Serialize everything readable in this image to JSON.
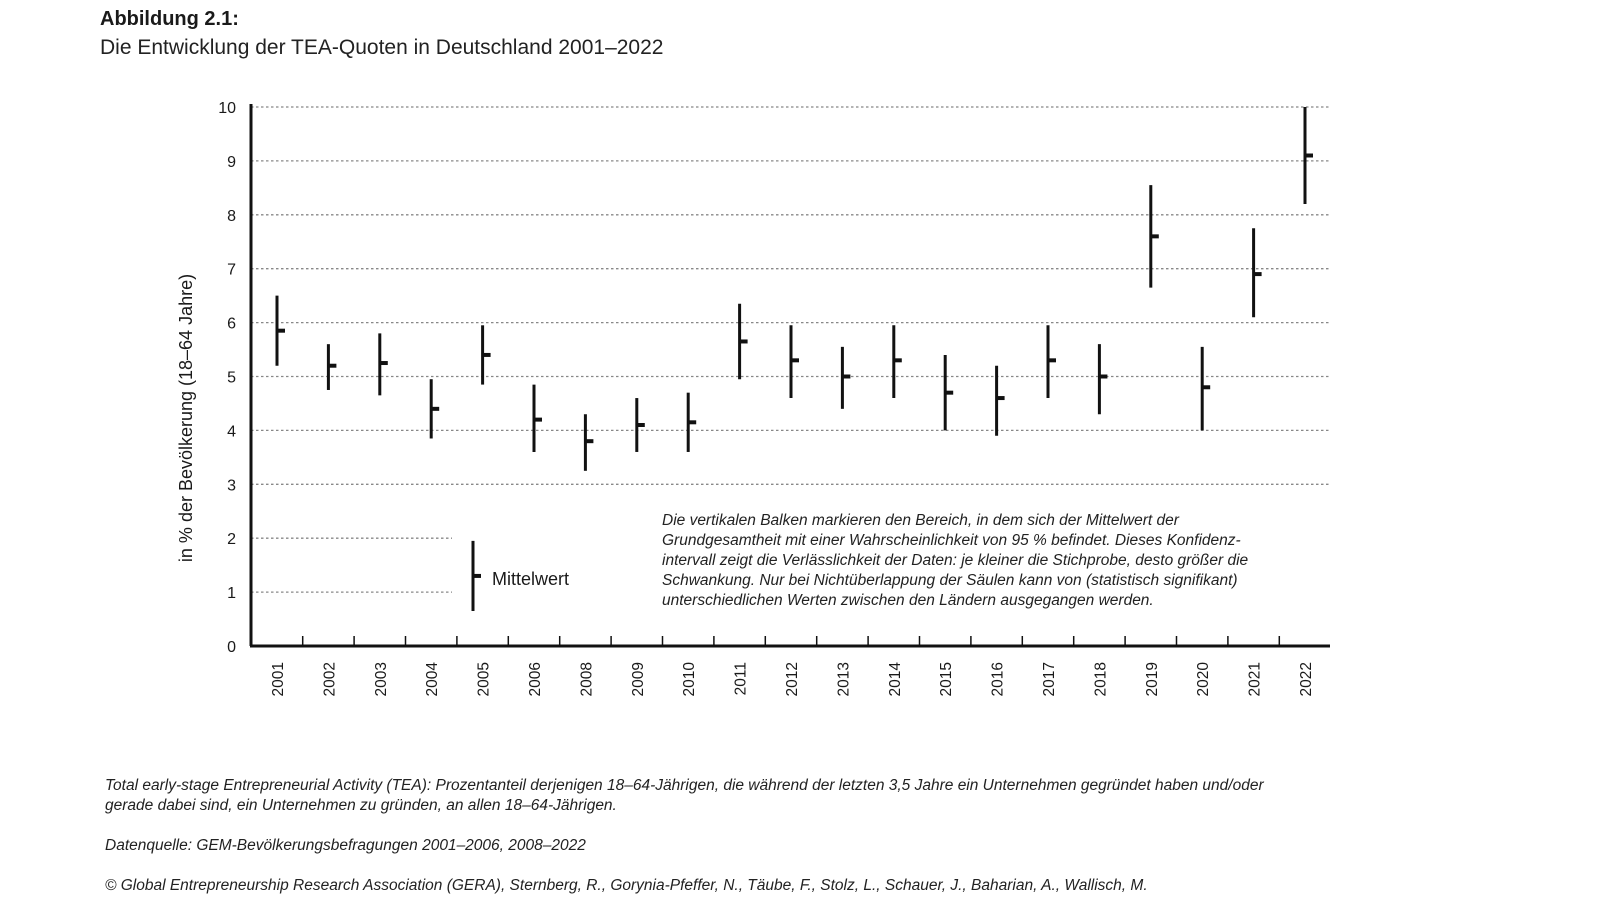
{
  "figure": {
    "label": "Abbildung 2.1:",
    "title": "Die Entwicklung der TEA-Quoten in Deutschland 2001–2022"
  },
  "chart_data": {
    "type": "errorbar",
    "title": "Die Entwicklung der TEA-Quoten in Deutschland 2001–2022",
    "ylabel": "in % der Bevölkerung (18–64 Jahre)",
    "xlabel": "",
    "ylim": [
      0,
      10
    ],
    "yticks": [
      0,
      1,
      2,
      3,
      4,
      5,
      6,
      7,
      8,
      9,
      10
    ],
    "grid": "horizontal-dotted",
    "legend": {
      "label": "Mittelwert",
      "placement": "lower-left"
    },
    "points": [
      {
        "year": "2001",
        "mean": 5.85,
        "low": 5.2,
        "high": 6.5
      },
      {
        "year": "2002",
        "mean": 5.2,
        "low": 4.75,
        "high": 5.6
      },
      {
        "year": "2003",
        "mean": 5.25,
        "low": 4.65,
        "high": 5.8
      },
      {
        "year": "2004",
        "mean": 4.4,
        "low": 3.85,
        "high": 4.95
      },
      {
        "year": "2005",
        "mean": 5.4,
        "low": 4.85,
        "high": 5.95
      },
      {
        "year": "2006",
        "mean": 4.2,
        "low": 3.6,
        "high": 4.85
      },
      {
        "year": "2008",
        "mean": 3.8,
        "low": 3.25,
        "high": 4.3
      },
      {
        "year": "2009",
        "mean": 4.1,
        "low": 3.6,
        "high": 4.6
      },
      {
        "year": "2010",
        "mean": 4.15,
        "low": 3.6,
        "high": 4.7
      },
      {
        "year": "2011",
        "mean": 5.65,
        "low": 4.95,
        "high": 6.35
      },
      {
        "year": "2012",
        "mean": 5.3,
        "low": 4.6,
        "high": 5.95
      },
      {
        "year": "2013",
        "mean": 5.0,
        "low": 4.4,
        "high": 5.55
      },
      {
        "year": "2014",
        "mean": 5.3,
        "low": 4.6,
        "high": 5.95
      },
      {
        "year": "2015",
        "mean": 4.7,
        "low": 4.0,
        "high": 5.4
      },
      {
        "year": "2016",
        "mean": 4.6,
        "low": 3.9,
        "high": 5.2
      },
      {
        "year": "2017",
        "mean": 5.3,
        "low": 4.6,
        "high": 5.95
      },
      {
        "year": "2018",
        "mean": 5.0,
        "low": 4.3,
        "high": 5.6
      },
      {
        "year": "2019",
        "mean": 7.6,
        "low": 6.65,
        "high": 8.55
      },
      {
        "year": "2020",
        "mean": 4.8,
        "low": 4.0,
        "high": 5.55
      },
      {
        "year": "2021",
        "mean": 6.9,
        "low": 6.1,
        "high": 7.75
      },
      {
        "year": "2022",
        "mean": 9.1,
        "low": 8.2,
        "high": 10.0
      }
    ],
    "annotation": "Die vertikalen Balken markieren den Bereich, in dem sich der Mittelwert der Grundgesamtheit mit einer Wahrscheinlichkeit von 95 % befindet. Dieses Konfidenz-intervall zeigt die Verlässlichkeit der Daten: je kleiner die Stichprobe, desto größer die Schwankung. Nur bei Nichtüberlappung der Säulen kann von (statistisch signifikant) unterschiedlichen Werten zwischen den Ländern ausgegangen werden."
  },
  "footer": {
    "definition": "Total early-stage Entrepreneurial Activity (TEA): Prozentanteil derjenigen 18–64-Jährigen, die während der letzten 3,5 Jahre ein Unternehmen gegründet haben und/oder gerade dabei sind, ein Unternehmen zu gründen, an allen 18–64-Jährigen.",
    "source": "Datenquelle: GEM-Bevölkerungsbefragungen 2001–2006, 2008–2022",
    "copyright": "© Global Entrepreneurship Research Association (GERA), Sternberg, R., Gorynia-Pfeffer, N., Täube, F., Stolz, L., Schauer, J., Baharian, A., Wallisch, M."
  },
  "colors": {
    "ink": "#111111",
    "grid": "#888888"
  }
}
